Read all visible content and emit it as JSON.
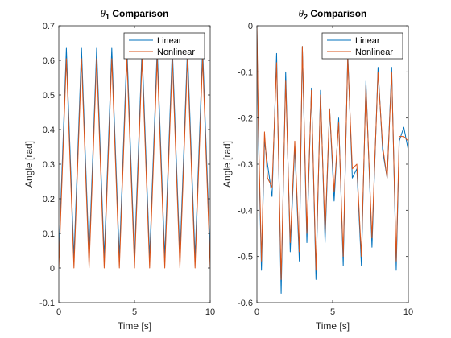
{
  "chart_data": [
    {
      "type": "line",
      "title_symbol": "θ",
      "title_sub": "1",
      "title_rest": " Comparison",
      "xlabel": "Time [s]",
      "ylabel": "Angle [rad]",
      "xlim": [
        0,
        10
      ],
      "ylim": [
        -0.1,
        0.7
      ],
      "xticks": [
        0,
        5,
        10
      ],
      "yticks": [
        -0.1,
        0,
        0.1,
        0.2,
        0.3,
        0.4,
        0.5,
        0.6,
        0.7
      ],
      "ytick_labels": [
        "-0.1",
        "0",
        "0.1",
        "0.2",
        "0.3",
        "0.4",
        "0.5",
        "0.6",
        "0.7"
      ],
      "legend": "top-right",
      "series": [
        {
          "name": "Linear",
          "color": "#0072BD",
          "x": [
            0,
            0.25,
            0.5,
            0.75,
            1.0,
            1.25,
            1.5,
            1.75,
            2.0,
            2.25,
            2.5,
            2.75,
            3.0,
            3.25,
            3.5,
            3.75,
            4.0,
            4.25,
            4.5,
            4.75,
            5.0,
            5.25,
            5.5,
            5.75,
            6.0,
            6.25,
            6.5,
            6.75,
            7.0,
            7.25,
            7.5,
            7.75,
            8.0,
            8.25,
            8.5,
            8.75,
            9.0,
            9.25,
            9.5,
            9.75,
            10.0
          ],
          "y": [
            0.03,
            0.33,
            0.635,
            0.33,
            0.03,
            0.33,
            0.635,
            0.33,
            0.03,
            0.33,
            0.635,
            0.33,
            0.03,
            0.33,
            0.635,
            0.33,
            0.03,
            0.33,
            0.635,
            0.33,
            0.03,
            0.33,
            0.635,
            0.33,
            0.03,
            0.33,
            0.635,
            0.33,
            0.03,
            0.33,
            0.635,
            0.33,
            0.03,
            0.33,
            0.635,
            0.33,
            0.03,
            0.33,
            0.635,
            0.33,
            0.03
          ]
        },
        {
          "name": "Nonlinear",
          "color": "#D95319",
          "x": [
            0,
            0.25,
            0.5,
            0.75,
            1.0,
            1.25,
            1.5,
            1.75,
            2.0,
            2.25,
            2.5,
            2.75,
            3.0,
            3.25,
            3.5,
            3.75,
            4.0,
            4.25,
            4.5,
            4.75,
            5.0,
            5.25,
            5.5,
            5.75,
            6.0,
            6.25,
            6.5,
            6.75,
            7.0,
            7.25,
            7.5,
            7.75,
            8.0,
            8.25,
            8.5,
            8.75,
            9.0,
            9.25,
            9.5,
            9.75,
            10.0
          ],
          "y": [
            0.0,
            0.3,
            0.605,
            0.3,
            0.0,
            0.3,
            0.605,
            0.3,
            0.0,
            0.3,
            0.605,
            0.3,
            0.0,
            0.3,
            0.605,
            0.3,
            0.0,
            0.3,
            0.605,
            0.3,
            0.0,
            0.3,
            0.605,
            0.3,
            0.0,
            0.3,
            0.605,
            0.3,
            0.0,
            0.3,
            0.605,
            0.3,
            0.0,
            0.3,
            0.605,
            0.3,
            0.0,
            0.3,
            0.605,
            0.3,
            0.0
          ]
        }
      ]
    },
    {
      "type": "line",
      "title_symbol": "θ",
      "title_sub": "2",
      "title_rest": " Comparison",
      "xlabel": "Time [s]",
      "ylabel": "Angle [rad]",
      "xlim": [
        0,
        10
      ],
      "ylim": [
        -0.6,
        0
      ],
      "xticks": [
        0,
        5,
        10
      ],
      "yticks": [
        -0.6,
        -0.5,
        -0.4,
        -0.3,
        -0.2,
        -0.1,
        0
      ],
      "ytick_labels": [
        "-0.6",
        "-0.5",
        "-0.4",
        "-0.3",
        "-0.2",
        "-0.1",
        "0"
      ],
      "legend": "top-right",
      "series": [
        {
          "name": "Linear",
          "color": "#0072BD",
          "x": [
            0,
            0.1,
            0.3,
            0.5,
            0.7,
            1.0,
            1.3,
            1.6,
            1.9,
            2.2,
            2.5,
            2.8,
            3.0,
            3.3,
            3.6,
            3.9,
            4.2,
            4.5,
            4.8,
            5.1,
            5.4,
            5.7,
            6.0,
            6.3,
            6.6,
            6.9,
            7.2,
            7.6,
            8.0,
            8.3,
            8.6,
            8.9,
            9.2,
            9.4,
            9.7,
            10.0
          ],
          "y": [
            -0.01,
            -0.24,
            -0.53,
            -0.25,
            -0.3,
            -0.37,
            -0.06,
            -0.58,
            -0.1,
            -0.49,
            -0.26,
            -0.51,
            -0.045,
            -0.47,
            -0.135,
            -0.55,
            -0.14,
            -0.47,
            -0.18,
            -0.38,
            -0.2,
            -0.52,
            -0.06,
            -0.33,
            -0.31,
            -0.52,
            -0.12,
            -0.48,
            -0.09,
            -0.27,
            -0.33,
            -0.09,
            -0.53,
            -0.25,
            -0.22,
            -0.27
          ]
        },
        {
          "name": "Nonlinear",
          "color": "#D95319",
          "x": [
            0,
            0.1,
            0.3,
            0.5,
            0.7,
            1.0,
            1.3,
            1.6,
            1.9,
            2.2,
            2.5,
            2.8,
            3.0,
            3.3,
            3.6,
            3.9,
            4.2,
            4.5,
            4.8,
            5.1,
            5.4,
            5.7,
            6.0,
            6.3,
            6.6,
            6.9,
            7.2,
            7.6,
            8.0,
            8.3,
            8.6,
            8.9,
            9.2,
            9.4,
            9.7,
            10.0
          ],
          "y": [
            0.0,
            -0.22,
            -0.51,
            -0.23,
            -0.33,
            -0.35,
            -0.08,
            -0.55,
            -0.12,
            -0.47,
            -0.25,
            -0.49,
            -0.045,
            -0.45,
            -0.14,
            -0.53,
            -0.15,
            -0.45,
            -0.18,
            -0.36,
            -0.21,
            -0.5,
            -0.07,
            -0.31,
            -0.3,
            -0.5,
            -0.13,
            -0.46,
            -0.1,
            -0.26,
            -0.33,
            -0.1,
            -0.51,
            -0.24,
            -0.24,
            -0.25
          ]
        }
      ]
    }
  ]
}
